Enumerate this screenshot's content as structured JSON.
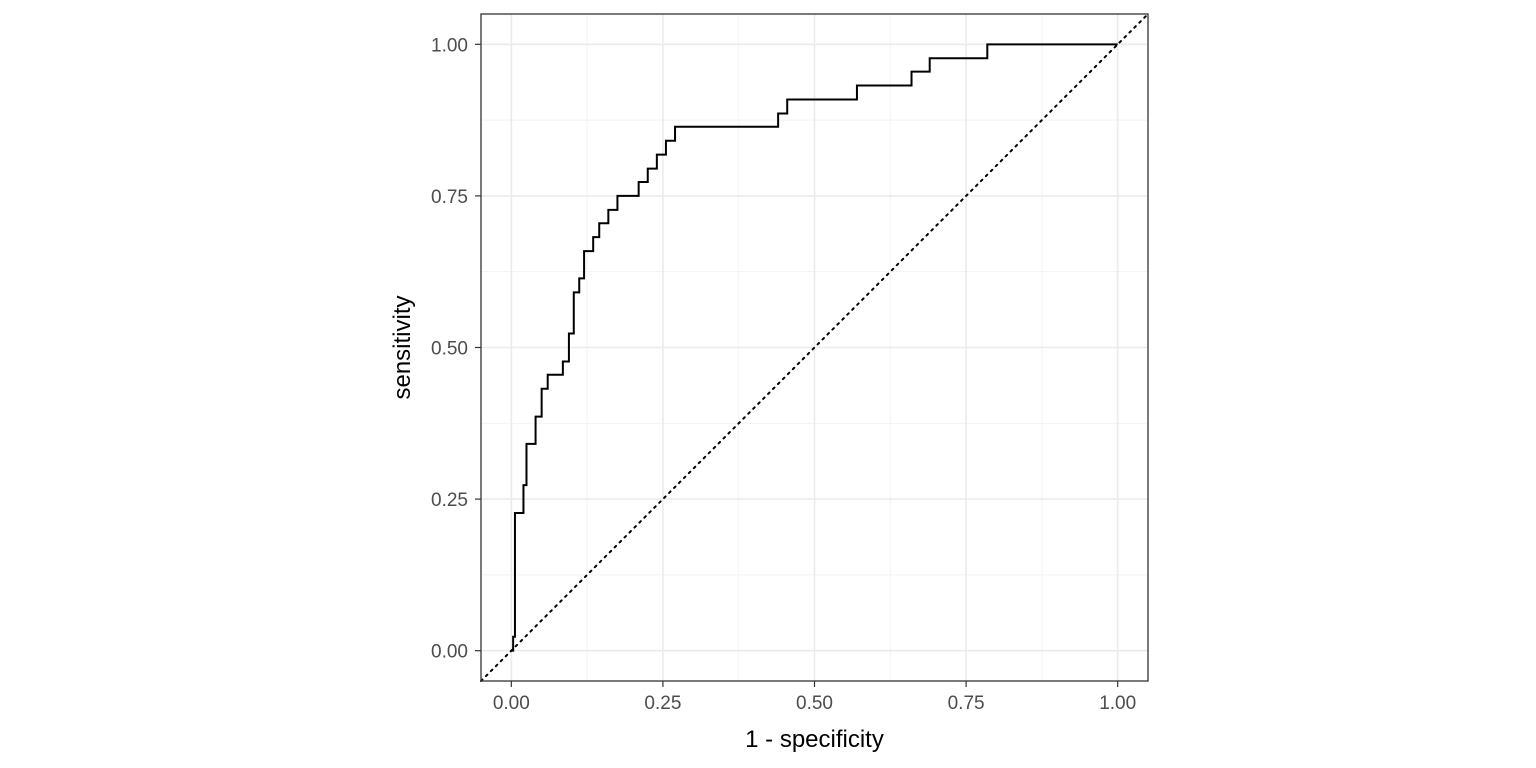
{
  "chart_data": {
    "type": "line",
    "xlabel": "1 - specificity",
    "ylabel": "sensitivity",
    "xlim": [
      -0.05,
      1.05
    ],
    "ylim": [
      -0.05,
      1.05
    ],
    "x_ticks": [
      "0.00",
      "0.25",
      "0.50",
      "0.75",
      "1.00"
    ],
    "y_ticks": [
      "0.00",
      "0.25",
      "0.50",
      "0.75",
      "1.00"
    ],
    "grid": true,
    "theme": "bw",
    "colors": {
      "roc_line": "#000000",
      "reference_line": "#000000",
      "grid": "#ebebeb",
      "border": "#333333"
    },
    "series": [
      {
        "style": "step",
        "x": [
          0.0,
          0.003,
          0.003,
          0.006,
          0.006,
          0.02,
          0.02,
          0.025,
          0.025,
          0.04,
          0.04,
          0.05,
          0.05,
          0.06,
          0.06,
          0.085,
          0.085,
          0.095,
          0.095,
          0.103,
          0.103,
          0.112,
          0.112,
          0.12,
          0.12,
          0.135,
          0.135,
          0.145,
          0.145,
          0.16,
          0.16,
          0.175,
          0.175,
          0.21,
          0.21,
          0.225,
          0.225,
          0.24,
          0.24,
          0.255,
          0.255,
          0.27,
          0.27,
          0.285,
          0.285,
          0.44,
          0.44,
          0.455,
          0.455,
          0.57,
          0.57,
          0.66,
          0.66,
          0.69,
          0.69,
          0.785,
          0.785,
          1.0
        ],
        "y": [
          0.0,
          0.0,
          0.023,
          0.023,
          0.227,
          0.227,
          0.273,
          0.273,
          0.341,
          0.341,
          0.386,
          0.386,
          0.432,
          0.432,
          0.455,
          0.455,
          0.477,
          0.477,
          0.523,
          0.523,
          0.591,
          0.591,
          0.614,
          0.614,
          0.659,
          0.659,
          0.682,
          0.682,
          0.705,
          0.705,
          0.727,
          0.727,
          0.75,
          0.75,
          0.773,
          0.773,
          0.795,
          0.795,
          0.818,
          0.818,
          0.841,
          0.841,
          0.864,
          0.864,
          0.864,
          0.864,
          0.886,
          0.886,
          0.909,
          0.909,
          0.932,
          0.932,
          0.955,
          0.955,
          0.977,
          0.977,
          1.0,
          1.0
        ]
      },
      {
        "style": "dotted",
        "x": [
          -0.05,
          1.05
        ],
        "y": [
          -0.05,
          1.05
        ]
      }
    ]
  }
}
